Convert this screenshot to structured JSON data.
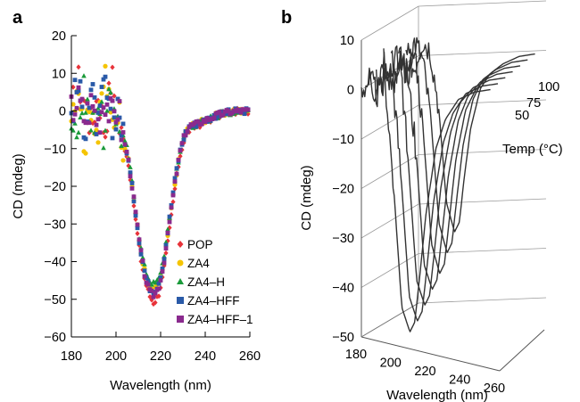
{
  "chart_data": [
    {
      "panel": "a",
      "type": "scatter",
      "xlabel": "Wavelength (nm)",
      "ylabel": "CD (mdeg)",
      "xlim": [
        180,
        260
      ],
      "ylim": [
        -60,
        20
      ],
      "xticks": [
        180,
        200,
        220,
        240,
        260
      ],
      "yticks": [
        -60,
        -50,
        -40,
        -30,
        -20,
        -10,
        0,
        10,
        20
      ],
      "grid": false,
      "legend_position": "lower-right",
      "series": [
        {
          "name": "POP",
          "marker": "diamond",
          "color": "#e8333a",
          "points": [
            [
              180,
              0
            ],
            [
              183,
              8
            ],
            [
              186,
              2
            ],
            [
              189,
              -4
            ],
            [
              192,
              5
            ],
            [
              195,
              -6
            ],
            [
              198,
              10
            ],
            [
              201,
              -3
            ],
            [
              203,
              -8
            ],
            [
              205,
              -12
            ],
            [
              207,
              -20
            ],
            [
              209,
              -30
            ],
            [
              211,
              -39
            ],
            [
              213,
              -45
            ],
            [
              215,
              -49
            ],
            [
              217,
              -51
            ],
            [
              219,
              -49
            ],
            [
              221,
              -44
            ],
            [
              223,
              -36
            ],
            [
              225,
              -27
            ],
            [
              227,
              -18
            ],
            [
              229,
              -11
            ],
            [
              231,
              -7
            ],
            [
              233,
              -5
            ],
            [
              236,
              -4
            ],
            [
              240,
              -3
            ],
            [
              245,
              -1.5
            ],
            [
              250,
              -0.5
            ],
            [
              255,
              0
            ],
            [
              260,
              0
            ]
          ]
        },
        {
          "name": "ZA4",
          "marker": "circle",
          "color": "#f5c400",
          "points": [
            [
              180,
              0
            ],
            [
              183,
              9
            ],
            [
              186,
              -9
            ],
            [
              189,
              3
            ],
            [
              192,
              -7
            ],
            [
              195,
              11
            ],
            [
              198,
              -4
            ],
            [
              201,
              2
            ],
            [
              203,
              -8
            ],
            [
              205,
              -11
            ],
            [
              207,
              -19
            ],
            [
              209,
              -28
            ],
            [
              211,
              -37
            ],
            [
              213,
              -43
            ],
            [
              215,
              -47
            ],
            [
              217,
              -48
            ],
            [
              219,
              -46
            ],
            [
              221,
              -42
            ],
            [
              223,
              -34
            ],
            [
              225,
              -25
            ],
            [
              227,
              -17
            ],
            [
              229,
              -10
            ],
            [
              231,
              -6
            ],
            [
              233,
              -4
            ],
            [
              236,
              -3.5
            ],
            [
              240,
              -2.5
            ],
            [
              245,
              -1.2
            ],
            [
              250,
              -0.4
            ],
            [
              255,
              0
            ],
            [
              260,
              0
            ]
          ]
        },
        {
          "name": "ZA4–H",
          "marker": "triangle",
          "color": "#1a9a3a",
          "points": [
            [
              180,
              0
            ],
            [
              183,
              -5
            ],
            [
              186,
              6
            ],
            [
              189,
              -6
            ],
            [
              192,
              4
            ],
            [
              195,
              -8
            ],
            [
              198,
              7
            ],
            [
              201,
              -4
            ],
            [
              203,
              -7
            ],
            [
              205,
              -10
            ],
            [
              207,
              -18
            ],
            [
              209,
              -27
            ],
            [
              211,
              -36
            ],
            [
              213,
              -42
            ],
            [
              215,
              -45
            ],
            [
              217,
              -46
            ],
            [
              219,
              -45
            ],
            [
              221,
              -40
            ],
            [
              223,
              -33
            ],
            [
              225,
              -24
            ],
            [
              227,
              -16
            ],
            [
              229,
              -10
            ],
            [
              231,
              -6
            ],
            [
              233,
              -4
            ],
            [
              236,
              -3.5
            ],
            [
              240,
              -2.5
            ],
            [
              245,
              -1.2
            ],
            [
              250,
              -0.4
            ],
            [
              255,
              0
            ],
            [
              260,
              0
            ]
          ]
        },
        {
          "name": "ZA4–HFF",
          "marker": "square",
          "color": "#2a5aa8",
          "points": [
            [
              180,
              0
            ],
            [
              183,
              7
            ],
            [
              186,
              -4
            ],
            [
              189,
              5
            ],
            [
              192,
              -5
            ],
            [
              195,
              8
            ],
            [
              198,
              -6
            ],
            [
              201,
              3
            ],
            [
              203,
              -7
            ],
            [
              205,
              -11
            ],
            [
              207,
              -19
            ],
            [
              209,
              -28
            ],
            [
              211,
              -37
            ],
            [
              213,
              -43
            ],
            [
              215,
              -47
            ],
            [
              217,
              -48
            ],
            [
              219,
              -46
            ],
            [
              221,
              -41
            ],
            [
              223,
              -33
            ],
            [
              225,
              -24
            ],
            [
              227,
              -16
            ],
            [
              229,
              -10
            ],
            [
              231,
              -6
            ],
            [
              233,
              -4
            ],
            [
              236,
              -3.5
            ],
            [
              240,
              -2.5
            ],
            [
              245,
              -1.2
            ],
            [
              250,
              -0.4
            ],
            [
              255,
              0
            ],
            [
              260,
              0
            ]
          ]
        },
        {
          "name": "ZA4–HFF–1",
          "marker": "square",
          "color": "#8a2a8e",
          "points": [
            [
              180,
              0
            ],
            [
              183,
              3
            ],
            [
              186,
              -2
            ],
            [
              189,
              2
            ],
            [
              192,
              -3
            ],
            [
              195,
              4
            ],
            [
              198,
              -2
            ],
            [
              201,
              1
            ],
            [
              203,
              -7
            ],
            [
              205,
              -11
            ],
            [
              207,
              -19
            ],
            [
              209,
              -28
            ],
            [
              211,
              -37
            ],
            [
              213,
              -44
            ],
            [
              215,
              -48
            ],
            [
              217,
              -49
            ],
            [
              219,
              -47
            ],
            [
              221,
              -42
            ],
            [
              223,
              -34
            ],
            [
              225,
              -25
            ],
            [
              227,
              -17
            ],
            [
              229,
              -10
            ],
            [
              231,
              -6
            ],
            [
              233,
              -4
            ],
            [
              236,
              -3.5
            ],
            [
              240,
              -2.5
            ],
            [
              245,
              -1.2
            ],
            [
              250,
              -0.4
            ],
            [
              255,
              0
            ],
            [
              260,
              0
            ]
          ]
        }
      ]
    },
    {
      "panel": "b",
      "type": "line",
      "xlabel": "Wavelength (nm)",
      "ylabel": "CD (mdeg)",
      "zlabel": "Temp (°C)",
      "xlim": [
        180,
        260
      ],
      "ylim": [
        -50,
        10
      ],
      "xticks": [
        180,
        200,
        220,
        240,
        260
      ],
      "yticks": [
        -50,
        -40,
        -30,
        -20,
        -10,
        0,
        10
      ],
      "zticks": [
        50,
        75,
        100
      ],
      "color": "#333333",
      "series": [
        {
          "temp": 100,
          "points": [
            [
              180,
              0
            ],
            [
              185,
              -3
            ],
            [
              190,
              3
            ],
            [
              195,
              1
            ],
            [
              200,
              -10
            ],
            [
              205,
              -30
            ],
            [
              210,
              -36
            ],
            [
              213,
              -34
            ],
            [
              216,
              -25
            ],
            [
              220,
              -15
            ],
            [
              226,
              -7
            ],
            [
              232,
              -4
            ],
            [
              240,
              -2
            ],
            [
              250,
              -0.5
            ],
            [
              260,
              0
            ]
          ]
        },
        {
          "temp": 90,
          "points": [
            [
              180,
              1
            ],
            [
              185,
              -2
            ],
            [
              190,
              4
            ],
            [
              195,
              0
            ],
            [
              200,
              -12
            ],
            [
              205,
              -33
            ],
            [
              210,
              -39
            ],
            [
              213,
              -37
            ],
            [
              216,
              -28
            ],
            [
              220,
              -17
            ],
            [
              226,
              -8
            ],
            [
              232,
              -4
            ],
            [
              240,
              -2
            ],
            [
              250,
              -0.5
            ],
            [
              260,
              0
            ]
          ]
        },
        {
          "temp": 80,
          "points": [
            [
              180,
              0
            ],
            [
              185,
              2
            ],
            [
              190,
              -2
            ],
            [
              195,
              3
            ],
            [
              200,
              -14
            ],
            [
              205,
              -36
            ],
            [
              210,
              -42
            ],
            [
              213,
              -40
            ],
            [
              216,
              -31
            ],
            [
              220,
              -19
            ],
            [
              226,
              -9
            ],
            [
              232,
              -5
            ],
            [
              240,
              -2
            ],
            [
              250,
              -0.5
            ],
            [
              260,
              0
            ]
          ]
        },
        {
          "temp": 70,
          "points": [
            [
              180,
              2
            ],
            [
              185,
              -1
            ],
            [
              190,
              3
            ],
            [
              195,
              -1
            ],
            [
              200,
              -16
            ],
            [
              205,
              -39
            ],
            [
              210,
              -44
            ],
            [
              213,
              -42
            ],
            [
              216,
              -33
            ],
            [
              220,
              -21
            ],
            [
              226,
              -10
            ],
            [
              232,
              -5
            ],
            [
              240,
              -2
            ],
            [
              250,
              -0.5
            ],
            [
              260,
              0
            ]
          ]
        },
        {
          "temp": 60,
          "points": [
            [
              180,
              0
            ],
            [
              185,
              3
            ],
            [
              190,
              -1
            ],
            [
              195,
              2
            ],
            [
              200,
              -18
            ],
            [
              205,
              -41
            ],
            [
              210,
              -46
            ],
            [
              213,
              -44
            ],
            [
              216,
              -35
            ],
            [
              220,
              -22
            ],
            [
              226,
              -11
            ],
            [
              232,
              -5
            ],
            [
              240,
              -2
            ],
            [
              250,
              -0.5
            ],
            [
              260,
              0
            ]
          ]
        },
        {
          "temp": 50,
          "points": [
            [
              180,
              1
            ],
            [
              185,
              -2
            ],
            [
              190,
              2
            ],
            [
              195,
              0
            ],
            [
              200,
              -19
            ],
            [
              205,
              -43
            ],
            [
              210,
              -48
            ],
            [
              213,
              -46
            ],
            [
              216,
              -37
            ],
            [
              220,
              -24
            ],
            [
              226,
              -12
            ],
            [
              232,
              -6
            ],
            [
              240,
              -2
            ],
            [
              250,
              -0.5
            ],
            [
              260,
              0
            ]
          ]
        },
        {
          "temp": 40,
          "points": [
            [
              180,
              0
            ],
            [
              185,
              2
            ],
            [
              190,
              -1
            ],
            [
              195,
              1
            ],
            [
              200,
              -20
            ],
            [
              205,
              -44
            ],
            [
              210,
              -49
            ],
            [
              213,
              -47
            ],
            [
              216,
              -38
            ],
            [
              220,
              -25
            ],
            [
              226,
              -12
            ],
            [
              232,
              -6
            ],
            [
              240,
              -2
            ],
            [
              250,
              -0.5
            ],
            [
              260,
              0
            ]
          ]
        }
      ]
    }
  ]
}
